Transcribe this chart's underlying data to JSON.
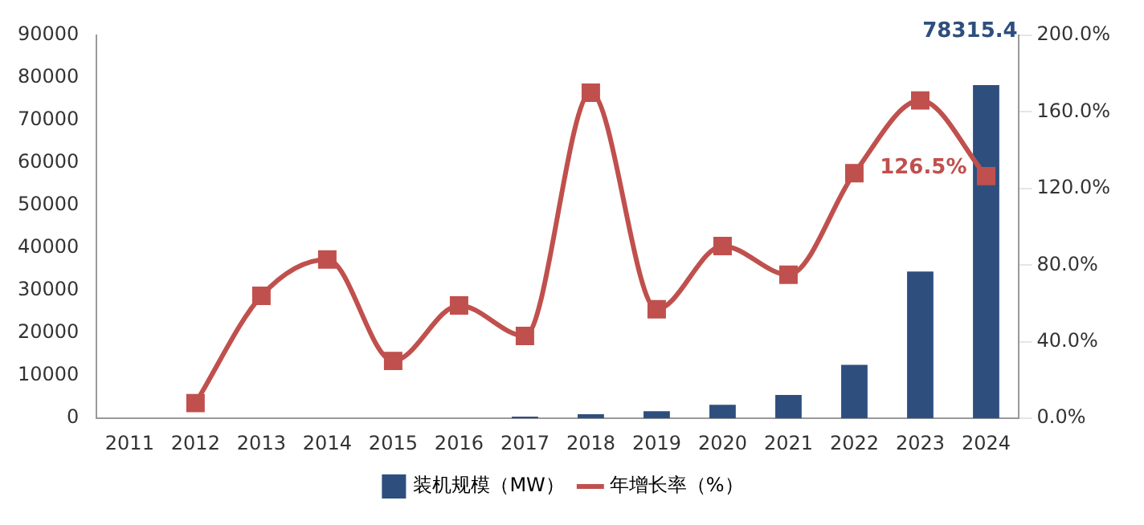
{
  "chart_data": {
    "type": "bar",
    "categories": [
      "2011",
      "2012",
      "2013",
      "2014",
      "2015",
      "2016",
      "2017",
      "2018",
      "2019",
      "2020",
      "2021",
      "2022",
      "2023",
      "2024"
    ],
    "series": [
      {
        "name": "装机规模（MW）",
        "color": "#2e4f7e",
        "values": [
          0,
          0,
          0,
          0,
          0,
          0,
          400,
          1000,
          1700,
          3200,
          5500,
          12600,
          34500,
          78315.4
        ],
        "value_labels": [
          null,
          null,
          null,
          null,
          null,
          null,
          null,
          null,
          null,
          null,
          null,
          null,
          null,
          "78315.4"
        ]
      },
      {
        "name": "年增长率（%）",
        "type": "line",
        "axis": "y2",
        "color": "#c0504d",
        "marker": "square",
        "values": [
          null,
          8,
          64,
          83,
          30,
          59,
          43,
          170,
          57,
          90,
          75,
          128,
          166,
          126.5
        ],
        "value_labels": [
          null,
          null,
          null,
          null,
          null,
          null,
          null,
          null,
          null,
          null,
          null,
          null,
          null,
          "126.5%"
        ]
      }
    ],
    "ylim": [
      0,
      90000
    ],
    "yticks": [
      0,
      10000,
      20000,
      30000,
      40000,
      50000,
      60000,
      70000,
      80000,
      90000
    ],
    "y2lim": [
      0,
      200
    ],
    "y2ticks": [
      {
        "value": 0,
        "label": "0.0%"
      },
      {
        "value": 40,
        "label": "40.0%"
      },
      {
        "value": 80,
        "label": "80.0%"
      },
      {
        "value": 120,
        "label": "120.0%"
      },
      {
        "value": 160,
        "label": "160.0%"
      },
      {
        "value": 200,
        "label": "200.0%"
      }
    ],
    "legend": "bottom",
    "grid": false
  }
}
